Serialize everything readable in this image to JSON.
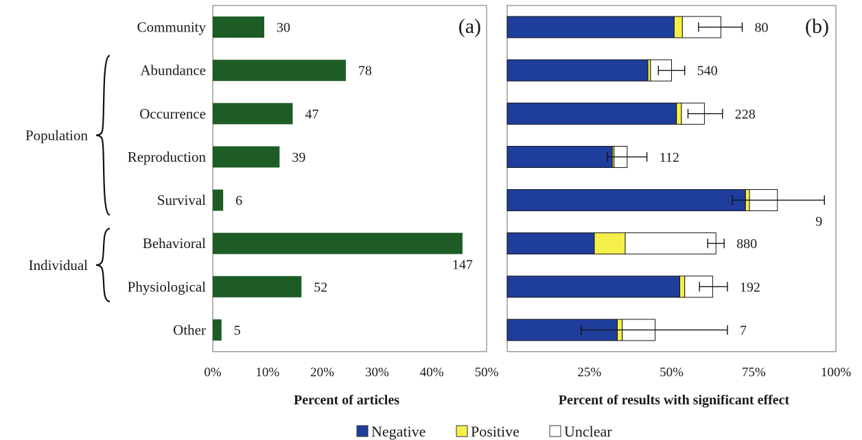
{
  "colors": {
    "articles_bar": "#1e5c26",
    "negative": "#1f3e9c",
    "positive": "#f5ef4a",
    "unclear": "#ffffff",
    "frame": "#9a9a9a",
    "text": "#1a1a1a"
  },
  "groups": [
    {
      "label": "Population",
      "from": "Abundance",
      "to": "Survival"
    },
    {
      "label": "Individual",
      "from": "Behavioral",
      "to": "Physiological"
    }
  ],
  "legend": [
    {
      "key": "negative",
      "label": "Negative"
    },
    {
      "key": "positive",
      "label": "Positive"
    },
    {
      "key": "unclear",
      "label": "Unclear"
    }
  ],
  "chart_data": [
    {
      "type": "bar",
      "orientation": "horizontal",
      "panel_label": "(a)",
      "categories": [
        "Community",
        "Abundance",
        "Occurrence",
        "Reproduction",
        "Survival",
        "Behavioral",
        "Physiological",
        "Other"
      ],
      "values": [
        9.4,
        24.3,
        14.6,
        12.2,
        1.9,
        45.6,
        16.2,
        1.6
      ],
      "data_labels": [
        "30",
        "78",
        "47",
        "39",
        "6",
        "147",
        "52",
        "5"
      ],
      "xlabel": "Percent of articles",
      "xlim": [
        0,
        50
      ],
      "xticks": [
        "0%",
        "10%",
        "20%",
        "30%",
        "40%",
        "50%"
      ],
      "grid": false
    },
    {
      "type": "bar",
      "orientation": "horizontal",
      "stacked": true,
      "panel_label": "(b)",
      "categories": [
        "Community",
        "Abundance",
        "Occurrence",
        "Reproduction",
        "Survival",
        "Behavioral",
        "Physiological",
        "Other"
      ],
      "series": [
        {
          "name": "Negative",
          "values": [
            50.8,
            42.8,
            51.5,
            32.0,
            72.5,
            26.5,
            52.5,
            33.5
          ]
        },
        {
          "name": "Positive",
          "values": [
            2.5,
            0.8,
            1.5,
            0.5,
            1.2,
            9.4,
            1.5,
            1.5
          ]
        },
        {
          "name": "Unclear",
          "values": [
            11.7,
            6.4,
            7.0,
            4.0,
            8.5,
            27.6,
            8.5,
            10.0
          ]
        }
      ],
      "error_bars": [
        [
          58.2,
          71.5
        ],
        [
          46.0,
          54.0
        ],
        [
          55.0,
          65.5
        ],
        [
          30.5,
          42.5
        ],
        [
          68.5,
          96.5
        ],
        [
          61.0,
          66.0
        ],
        [
          58.5,
          67.0
        ],
        [
          22.5,
          67.0
        ]
      ],
      "data_labels": [
        "80",
        "540",
        "228",
        "112",
        "9",
        "880",
        "192",
        "7"
      ],
      "xlabel": "Percent of results with significant effect",
      "xlim": [
        0,
        100
      ],
      "xticks": [
        "25%",
        "50%",
        "75%",
        "100%"
      ],
      "xtick_values": [
        25,
        50,
        75,
        100
      ],
      "legend_position": "bottom",
      "grid": false
    }
  ]
}
